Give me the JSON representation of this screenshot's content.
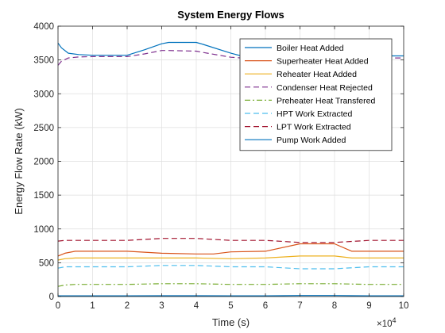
{
  "chart_data": {
    "type": "line",
    "title": "System Energy Flows",
    "xlabel": "Time (s)",
    "ylabel": "Energy Flow Rate (kW)",
    "x_exponent_label": "×10",
    "x_exponent_power": "4",
    "xlim": [
      0,
      100000
    ],
    "ylim": [
      0,
      4000
    ],
    "x_ticks": [
      0,
      10000,
      20000,
      30000,
      40000,
      50000,
      60000,
      70000,
      80000,
      90000,
      100000
    ],
    "x_tick_labels": [
      "0",
      "1",
      "2",
      "3",
      "4",
      "5",
      "6",
      "7",
      "8",
      "9",
      "10"
    ],
    "y_ticks": [
      0,
      500,
      1000,
      1500,
      2000,
      2500,
      3000,
      3500,
      4000
    ],
    "y_tick_labels": [
      "0",
      "500",
      "1000",
      "1500",
      "2000",
      "2500",
      "3000",
      "3500",
      "4000"
    ],
    "grid": true,
    "legend_position": "top-right",
    "series": [
      {
        "name": "Boiler Heat Added",
        "color": "#0072BD",
        "style": "solid",
        "x": [
          0,
          1000,
          3000,
          6000,
          10000,
          20000,
          25000,
          30000,
          32000,
          40000,
          42000,
          50000,
          53000,
          60000,
          70000,
          80000,
          90000,
          100000
        ],
        "y": [
          3750,
          3680,
          3600,
          3580,
          3570,
          3570,
          3650,
          3740,
          3760,
          3760,
          3730,
          3600,
          3560,
          3560,
          3560,
          3560,
          3560,
          3560
        ]
      },
      {
        "name": "Superheater Heat Added",
        "color": "#D95319",
        "style": "solid",
        "x": [
          0,
          2000,
          5000,
          20000,
          30000,
          40000,
          45000,
          50000,
          60000,
          70000,
          80000,
          85000,
          100000
        ],
        "y": [
          600,
          640,
          670,
          670,
          640,
          630,
          630,
          660,
          670,
          780,
          780,
          670,
          670
        ]
      },
      {
        "name": "Reheater Heat Added",
        "color": "#EDB120",
        "style": "solid",
        "x": [
          0,
          2000,
          5000,
          20000,
          30000,
          40000,
          50000,
          60000,
          70000,
          80000,
          85000,
          100000
        ],
        "y": [
          540,
          560,
          570,
          570,
          570,
          570,
          560,
          570,
          600,
          600,
          570,
          570
        ]
      },
      {
        "name": "Condenser Heat Rejected",
        "color": "#7E2F8E",
        "style": "dashed",
        "x": [
          0,
          1000,
          3000,
          6000,
          10000,
          20000,
          25000,
          30000,
          32000,
          40000,
          42000,
          50000,
          53000,
          60000,
          70000,
          80000,
          90000,
          100000
        ],
        "y": [
          3420,
          3480,
          3530,
          3545,
          3550,
          3550,
          3590,
          3640,
          3640,
          3630,
          3610,
          3540,
          3530,
          3530,
          3530,
          3530,
          3530,
          3530
        ]
      },
      {
        "name": "Preheater Heat Transfered",
        "color": "#77AC30",
        "style": "dashdot",
        "x": [
          0,
          2000,
          5000,
          20000,
          30000,
          40000,
          50000,
          60000,
          70000,
          80000,
          90000,
          100000
        ],
        "y": [
          150,
          170,
          180,
          180,
          190,
          190,
          180,
          180,
          190,
          190,
          180,
          180
        ]
      },
      {
        "name": "HPT Work Extracted",
        "color": "#4DBEEE",
        "style": "dashed",
        "x": [
          0,
          2000,
          5000,
          20000,
          30000,
          40000,
          50000,
          60000,
          70000,
          80000,
          90000,
          100000
        ],
        "y": [
          420,
          440,
          440,
          440,
          460,
          460,
          440,
          440,
          410,
          410,
          440,
          440
        ]
      },
      {
        "name": "LPT Work Extracted",
        "color": "#A2142F",
        "style": "dashed",
        "x": [
          0,
          2000,
          5000,
          20000,
          30000,
          40000,
          50000,
          60000,
          70000,
          80000,
          90000,
          100000
        ],
        "y": [
          820,
          830,
          830,
          830,
          860,
          860,
          830,
          830,
          800,
          800,
          830,
          830
        ]
      },
      {
        "name": "Pump Work Added",
        "color": "#0072BD",
        "style": "solid",
        "x": [
          0,
          20000,
          30000,
          40000,
          50000,
          60000,
          70000,
          80000,
          90000,
          100000
        ],
        "y": [
          10,
          10,
          12,
          12,
          10,
          10,
          15,
          15,
          10,
          10
        ]
      }
    ]
  }
}
